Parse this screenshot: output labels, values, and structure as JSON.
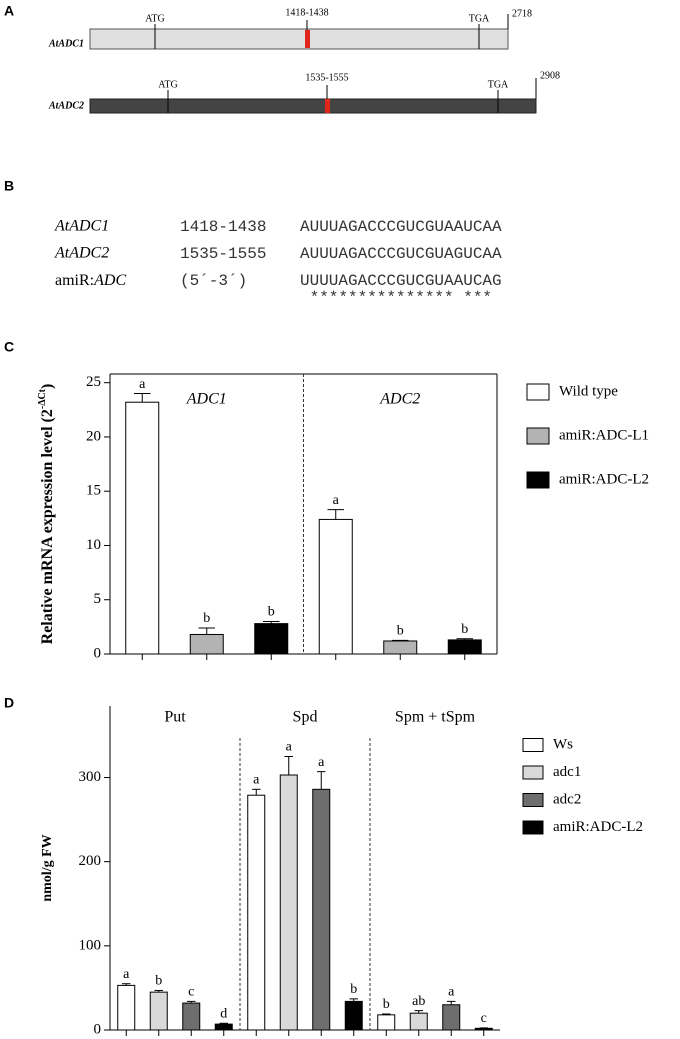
{
  "panel_a": {
    "label": "A",
    "genes": [
      {
        "name": "AtADC1",
        "start": "ATG",
        "target": "1418-1438",
        "stop": "TGA",
        "length": "2718"
      },
      {
        "name": "AtADC2",
        "start": "ATG",
        "target": "1535-1555",
        "stop": "TGA",
        "length": "2908"
      }
    ]
  },
  "panel_b": {
    "label": "B",
    "rows": [
      {
        "name": "AtADC1",
        "range": "1418-1438",
        "sequence": "AUUUAGACCCGUCGUAAUCAA"
      },
      {
        "name": "AtADC2",
        "range": "1535-1555",
        "sequence": "AUUUAGACCCGUCGUAGUCAA"
      },
      {
        "name": [
          "amiR:",
          "ADC"
        ],
        "range": "(5´-3´)",
        "sequence": "UUUUAGACCCGUCGUAAUCAG"
      }
    ],
    "match": "*************** ***"
  },
  "chart_data": [
    {
      "type": "bar",
      "panel": "C",
      "y_label": [
        "Relative mRNA expression level (2",
        "-ΔCt",
        ")"
      ],
      "categories": [
        "ADC1",
        "ADC2"
      ],
      "series": [
        {
          "name": "Wild type",
          "color": "#ffffff",
          "values": [
            23.2,
            12.4
          ],
          "errors": [
            0.8,
            0.9
          ],
          "letters": [
            "a",
            "a"
          ]
        },
        {
          "name": "amiR:ADC-L1",
          "color": "#b3b3b3",
          "values": [
            1.8,
            1.2
          ],
          "errors": [
            0.6,
            0.05
          ],
          "letters": [
            "b",
            "b"
          ]
        },
        {
          "name": "amiR:ADC-L2",
          "color": "#000000",
          "values": [
            2.8,
            1.3
          ],
          "errors": [
            0.2,
            0.1
          ],
          "letters": [
            "b",
            "b"
          ]
        }
      ],
      "ylim": [
        0,
        25.8
      ],
      "yticks": [
        0,
        5,
        10,
        15,
        20,
        25
      ]
    },
    {
      "type": "bar",
      "panel": "D",
      "y_label": "nmol/g FW",
      "categories": [
        "Put",
        "Spd",
        "Spm + tSpm"
      ],
      "series": [
        {
          "name": "Ws",
          "color": "#ffffff",
          "values": [
            53,
            279,
            18
          ],
          "errors": [
            2,
            7,
            1
          ],
          "letters": [
            "a",
            "a",
            "b"
          ]
        },
        {
          "name": "adc1",
          "color": "#d9d9d9",
          "values": [
            45,
            303,
            20
          ],
          "errors": [
            2,
            22,
            3
          ],
          "letters": [
            "b",
            "a",
            "ab"
          ]
        },
        {
          "name": "adc2",
          "color": "#6e6e6e",
          "values": [
            32,
            286,
            30
          ],
          "errors": [
            2,
            21,
            4
          ],
          "letters": [
            "c",
            "a",
            "a"
          ]
        },
        {
          "name": "amiR:ADC-L2",
          "color": "#000000",
          "values": [
            7,
            34,
            2
          ],
          "errors": [
            1,
            3,
            0.5
          ],
          "letters": [
            "d",
            "b",
            "c"
          ]
        }
      ],
      "ylim": [
        0,
        385
      ],
      "yticks": [
        0,
        100,
        200,
        300
      ]
    }
  ]
}
